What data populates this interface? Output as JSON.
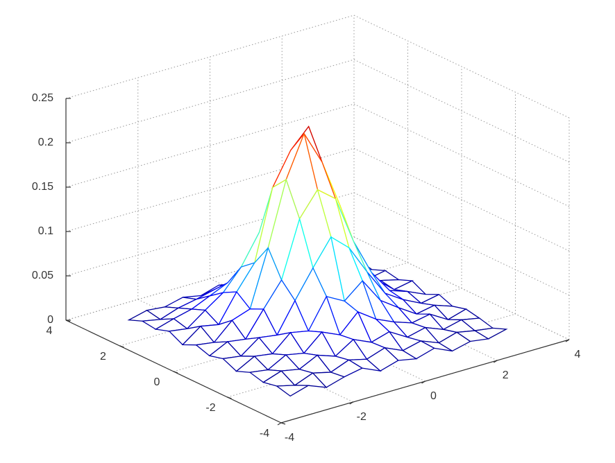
{
  "chart_data": {
    "type": "mesh",
    "colormap": "jet",
    "grid": true,
    "x": [
      -3,
      -2.5,
      -2,
      -1.5,
      -1,
      -0.5,
      0,
      0.5,
      1,
      1.5,
      2,
      2.5,
      3
    ],
    "y": [
      -3,
      -2.5,
      -2,
      -1.5,
      -1,
      -0.5,
      0,
      0.5,
      1,
      1.5,
      2,
      2.5,
      3
    ],
    "z": [
      [
        0.004,
        0.01,
        0.002,
        0.008,
        0.012,
        0.003,
        0.009,
        0.005,
        0.011,
        0.002,
        0.007,
        0.004,
        0.009
      ],
      [
        0.008,
        0.003,
        0.011,
        0.006,
        0.014,
        0.009,
        0.016,
        0.007,
        0.012,
        0.004,
        0.01,
        0.006,
        0.003
      ],
      [
        0.005,
        0.012,
        0.008,
        0.018,
        0.011,
        0.024,
        0.015,
        0.021,
        0.009,
        0.014,
        0.006,
        0.011,
        0.007
      ],
      [
        0.009,
        0.006,
        0.017,
        0.013,
        0.031,
        0.022,
        0.042,
        0.028,
        0.019,
        0.012,
        0.016,
        0.004,
        0.01
      ],
      [
        0.003,
        0.014,
        0.011,
        0.029,
        0.025,
        0.058,
        0.047,
        0.064,
        0.036,
        0.022,
        0.009,
        0.013,
        0.006
      ],
      [
        0.01,
        0.007,
        0.022,
        0.019,
        0.052,
        0.083,
        0.112,
        0.094,
        0.061,
        0.031,
        0.018,
        0.008,
        0.012
      ],
      [
        0.006,
        0.016,
        0.013,
        0.041,
        0.068,
        0.131,
        0.158,
        0.142,
        0.088,
        0.047,
        0.021,
        0.014,
        0.005
      ],
      [
        0.011,
        0.008,
        0.027,
        0.034,
        0.097,
        0.168,
        0.214,
        0.176,
        0.121,
        0.052,
        0.026,
        0.009,
        0.013
      ],
      [
        0.004,
        0.019,
        0.015,
        0.046,
        0.073,
        0.152,
        0.188,
        0.209,
        0.104,
        0.039,
        0.017,
        0.012,
        0.007
      ],
      [
        0.012,
        0.009,
        0.024,
        0.038,
        0.061,
        0.094,
        0.127,
        0.113,
        0.072,
        0.028,
        0.014,
        0.006,
        0.01
      ],
      [
        0.007,
        0.013,
        0.018,
        0.027,
        0.036,
        0.049,
        0.058,
        0.044,
        0.031,
        0.019,
        0.008,
        0.011,
        0.004
      ],
      [
        0.009,
        0.005,
        0.012,
        0.016,
        0.021,
        0.018,
        0.026,
        0.015,
        0.013,
        0.007,
        0.012,
        0.005,
        0.008
      ],
      [
        0.003,
        0.008,
        0.006,
        0.011,
        0.007,
        0.013,
        0.009,
        0.012,
        0.006,
        0.01,
        0.004,
        0.007,
        0.005
      ]
    ],
    "xlim": [
      -4,
      4
    ],
    "ylim": [
      -4,
      4
    ],
    "zlim": [
      0,
      0.25
    ],
    "xticks": [
      -4,
      -2,
      0,
      2,
      4
    ],
    "yticks": [
      -4,
      -2,
      0,
      2,
      4
    ],
    "zticks": [
      0,
      0.05,
      0.1,
      0.15,
      0.2,
      0.25
    ]
  }
}
